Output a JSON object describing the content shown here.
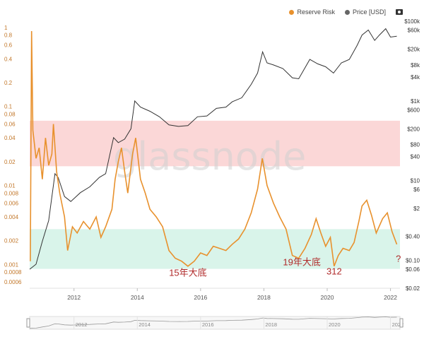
{
  "legend": {
    "reserve_risk": "Reserve Risk",
    "price": "Price [USD]",
    "reserve_color": "#e8912d",
    "price_color": "#333333",
    "camera_icon": "camera-icon"
  },
  "watermark": "glassnode",
  "chart_data": {
    "type": "line",
    "x_range": [
      2010.6,
      2022.3
    ],
    "x_ticks": [
      "2012",
      "2014",
      "2016",
      "2018",
      "2020",
      "2022"
    ],
    "scale": "log",
    "left_axis": {
      "range": [
        0.0005,
        1.2
      ],
      "ticks": [
        "1",
        "0.8",
        "0.6",
        "0.4",
        "0.2",
        "0.1",
        "0.08",
        "0.06",
        "0.04",
        "0.02",
        "0.01",
        "0.008",
        "0.006",
        "0.004",
        "0.002",
        "0.001",
        "0.0008",
        "0.0006"
      ]
    },
    "right_axis": {
      "range": [
        0.02,
        100000
      ],
      "ticks": [
        "$100k",
        "$60k",
        "$20k",
        "$8k",
        "$4k",
        "$1k",
        "$600",
        "$200",
        "$80",
        "$40",
        "$10",
        "$6",
        "$2",
        "$0.40",
        "$0.10",
        "$0.06",
        "$0.02"
      ]
    },
    "bands": [
      {
        "name": "high-risk-band",
        "from": 0.0175,
        "to": 0.066,
        "color": "#fbd7d7"
      },
      {
        "name": "low-risk-band",
        "from": 0.00088,
        "to": 0.0028,
        "color": "#d9f4ea"
      }
    ],
    "series": [
      {
        "name": "Reserve Risk",
        "axis": "left",
        "points": [
          [
            2010.62,
            0.0011
          ],
          [
            2010.66,
            0.9
          ],
          [
            2010.7,
            0.05
          ],
          [
            2010.8,
            0.022
          ],
          [
            2010.9,
            0.03
          ],
          [
            2011.0,
            0.012
          ],
          [
            2011.1,
            0.04
          ],
          [
            2011.2,
            0.018
          ],
          [
            2011.3,
            0.025
          ],
          [
            2011.35,
            0.06
          ],
          [
            2011.45,
            0.015
          ],
          [
            2011.55,
            0.008
          ],
          [
            2011.7,
            0.004
          ],
          [
            2011.8,
            0.0015
          ],
          [
            2011.95,
            0.003
          ],
          [
            2012.1,
            0.0025
          ],
          [
            2012.3,
            0.0035
          ],
          [
            2012.5,
            0.0028
          ],
          [
            2012.7,
            0.004
          ],
          [
            2012.85,
            0.0022
          ],
          [
            2013.0,
            0.003
          ],
          [
            2013.2,
            0.005
          ],
          [
            2013.3,
            0.012
          ],
          [
            2013.4,
            0.02
          ],
          [
            2013.5,
            0.03
          ],
          [
            2013.6,
            0.015
          ],
          [
            2013.7,
            0.008
          ],
          [
            2013.85,
            0.025
          ],
          [
            2013.95,
            0.04
          ],
          [
            2014.1,
            0.012
          ],
          [
            2014.25,
            0.008
          ],
          [
            2014.4,
            0.005
          ],
          [
            2014.6,
            0.004
          ],
          [
            2014.8,
            0.003
          ],
          [
            2015.0,
            0.0015
          ],
          [
            2015.2,
            0.0012
          ],
          [
            2015.4,
            0.0011
          ],
          [
            2015.6,
            0.00095
          ],
          [
            2015.8,
            0.0011
          ],
          [
            2016.0,
            0.0014
          ],
          [
            2016.2,
            0.0013
          ],
          [
            2016.4,
            0.0017
          ],
          [
            2016.6,
            0.0016
          ],
          [
            2016.8,
            0.0015
          ],
          [
            2017.0,
            0.0018
          ],
          [
            2017.2,
            0.0021
          ],
          [
            2017.4,
            0.0028
          ],
          [
            2017.6,
            0.0045
          ],
          [
            2017.8,
            0.009
          ],
          [
            2017.95,
            0.022
          ],
          [
            2018.1,
            0.01
          ],
          [
            2018.3,
            0.006
          ],
          [
            2018.5,
            0.004
          ],
          [
            2018.7,
            0.0028
          ],
          [
            2018.9,
            0.0013
          ],
          [
            2019.1,
            0.0012
          ],
          [
            2019.3,
            0.0016
          ],
          [
            2019.5,
            0.0024
          ],
          [
            2019.65,
            0.0038
          ],
          [
            2019.8,
            0.0025
          ],
          [
            2019.95,
            0.0017
          ],
          [
            2020.1,
            0.0022
          ],
          [
            2020.22,
            0.00095
          ],
          [
            2020.35,
            0.0013
          ],
          [
            2020.5,
            0.0016
          ],
          [
            2020.7,
            0.0015
          ],
          [
            2020.85,
            0.0019
          ],
          [
            2021.0,
            0.0035
          ],
          [
            2021.1,
            0.0055
          ],
          [
            2021.25,
            0.0065
          ],
          [
            2021.4,
            0.0042
          ],
          [
            2021.55,
            0.0025
          ],
          [
            2021.75,
            0.0038
          ],
          [
            2021.9,
            0.0045
          ],
          [
            2022.05,
            0.0026
          ],
          [
            2022.2,
            0.0018
          ]
        ]
      },
      {
        "name": "Price [USD]",
        "axis": "right",
        "points": [
          [
            2010.6,
            0.06
          ],
          [
            2010.8,
            0.08
          ],
          [
            2011.0,
            0.3
          ],
          [
            2011.2,
            1
          ],
          [
            2011.4,
            15
          ],
          [
            2011.5,
            12
          ],
          [
            2011.7,
            4
          ],
          [
            2011.9,
            3
          ],
          [
            2012.2,
            5
          ],
          [
            2012.5,
            7
          ],
          [
            2012.8,
            12
          ],
          [
            2013.0,
            15
          ],
          [
            2013.25,
            120
          ],
          [
            2013.4,
            90
          ],
          [
            2013.6,
            110
          ],
          [
            2013.8,
            200
          ],
          [
            2013.92,
            1000
          ],
          [
            2014.1,
            700
          ],
          [
            2014.4,
            550
          ],
          [
            2014.7,
            400
          ],
          [
            2015.0,
            250
          ],
          [
            2015.3,
            230
          ],
          [
            2015.6,
            240
          ],
          [
            2015.9,
            400
          ],
          [
            2016.2,
            420
          ],
          [
            2016.5,
            650
          ],
          [
            2016.8,
            700
          ],
          [
            2017.0,
            950
          ],
          [
            2017.3,
            1200
          ],
          [
            2017.6,
            2600
          ],
          [
            2017.8,
            5000
          ],
          [
            2017.96,
            17000
          ],
          [
            2018.1,
            9000
          ],
          [
            2018.3,
            8000
          ],
          [
            2018.6,
            6500
          ],
          [
            2018.9,
            3800
          ],
          [
            2019.1,
            3600
          ],
          [
            2019.45,
            11000
          ],
          [
            2019.7,
            8500
          ],
          [
            2019.95,
            7200
          ],
          [
            2020.2,
            5000
          ],
          [
            2020.45,
            9000
          ],
          [
            2020.7,
            11000
          ],
          [
            2020.95,
            25000
          ],
          [
            2021.1,
            45000
          ],
          [
            2021.3,
            60000
          ],
          [
            2021.5,
            33000
          ],
          [
            2021.65,
            45000
          ],
          [
            2021.85,
            65000
          ],
          [
            2022.0,
            40000
          ],
          [
            2022.2,
            42000
          ]
        ]
      }
    ]
  },
  "annotations": [
    {
      "text": "15年大底",
      "x": 2015.6,
      "y": 0.00072
    },
    {
      "text": "19年大底",
      "x": 2019.2,
      "y": 0.00098
    },
    {
      "text": "312",
      "x": 2020.22,
      "y": 0.00075
    },
    {
      "text": "?",
      "x": 2022.25,
      "y": 0.00108
    }
  ],
  "navigator": {
    "ticks": [
      "2012",
      "2014",
      "2016",
      "2018",
      "2020",
      "2022"
    ]
  }
}
